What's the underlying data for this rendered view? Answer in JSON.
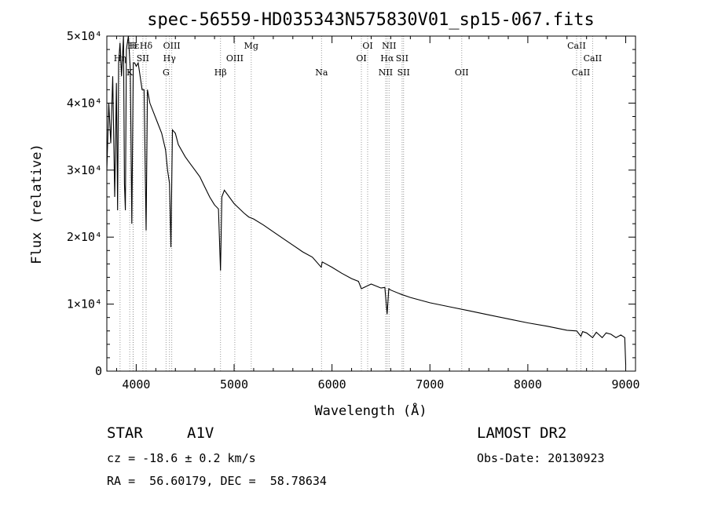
{
  "chart_data": {
    "type": "line",
    "title": "spec-56559-HD035343N575830V01_sp15-067.fits",
    "xlabel": "Wavelength (Å)",
    "ylabel": "Flux (relative)",
    "xlim": [
      3700,
      9100
    ],
    "ylim": [
      0,
      50000
    ],
    "xticks": [
      4000,
      5000,
      6000,
      7000,
      8000,
      9000
    ],
    "xtick_labels": [
      "4000",
      "5000",
      "6000",
      "7000",
      "8000",
      "9000"
    ],
    "yticks": [
      0,
      10000,
      20000,
      30000,
      40000,
      50000
    ],
    "ytick_labels": [
      "0",
      "1×10⁴",
      "2×10⁴",
      "3×10⁴",
      "4×10⁴",
      "5×10⁴"
    ],
    "grid": false,
    "series": [
      {
        "x": [
          3700,
          3720,
          3740,
          3760,
          3780,
          3798,
          3810,
          3820,
          3835,
          3850,
          3870,
          3880,
          3889,
          3900,
          3920,
          3940,
          3955,
          3970,
          3985,
          4000,
          4020,
          4060,
          4080,
          4101,
          4115,
          4140,
          4180,
          4220,
          4260,
          4300,
          4320,
          4340,
          4355,
          4370,
          4400,
          4430,
          4500,
          4550,
          4600,
          4650,
          4700,
          4750,
          4800,
          4840,
          4861,
          4875,
          4900,
          4950,
          5000,
          5050,
          5100,
          5150,
          5200,
          5300,
          5400,
          5500,
          5600,
          5700,
          5800,
          5890,
          5900,
          6000,
          6100,
          6200,
          6270,
          6300,
          6400,
          6500,
          6540,
          6563,
          6580,
          6600,
          6700,
          6800,
          6900,
          7000,
          7200,
          7400,
          7600,
          7800,
          8000,
          8200,
          8400,
          8500,
          8542,
          8560,
          8600,
          8662,
          8700,
          8760,
          8800,
          8850,
          8900,
          8950,
          8990,
          9000
        ],
        "y": [
          30000,
          40000,
          34000,
          44000,
          26000,
          43000,
          24000,
          46000,
          49000,
          44000,
          50000,
          28000,
          24000,
          48000,
          50000,
          45000,
          22000,
          46000,
          46000,
          45500,
          46000,
          42000,
          42000,
          21000,
          42000,
          40000,
          38500,
          37000,
          35500,
          33000,
          30000,
          28000,
          18500,
          36000,
          35500,
          33800,
          32000,
          31000,
          30000,
          29000,
          27500,
          26000,
          24800,
          24200,
          15000,
          26000,
          27000,
          26000,
          25000,
          24300,
          23600,
          23000,
          22700,
          21800,
          20800,
          19800,
          18800,
          17800,
          17000,
          15500,
          16300,
          15500,
          14600,
          13800,
          13400,
          12300,
          13000,
          12400,
          12500,
          8500,
          12300,
          12100,
          11500,
          11000,
          10600,
          10200,
          9600,
          9000,
          8400,
          7800,
          7200,
          6700,
          6100,
          6000,
          5200,
          5900,
          5700,
          5000,
          5800,
          5000,
          5700,
          5500,
          5000,
          5400,
          5000,
          1000
        ]
      }
    ],
    "line_markers": [
      {
        "label": "Hε",
        "x": 3970,
        "row": 0
      },
      {
        "label": "Hη",
        "x": 3835,
        "row": 1
      },
      {
        "label": "K",
        "x": 3934,
        "row": 2
      },
      {
        "label": "H",
        "x": 3968,
        "row": 0
      },
      {
        "label": "Hδ",
        "x": 4101,
        "row": 0
      },
      {
        "label": "SII",
        "x": 4068,
        "row": 1
      },
      {
        "label": "OIII",
        "x": 4363,
        "row": 0
      },
      {
        "label": "Hγ",
        "x": 4340,
        "row": 1
      },
      {
        "label": "G",
        "x": 4305,
        "row": 2
      },
      {
        "label": "Hβ",
        "x": 4861,
        "row": 2
      },
      {
        "label": "OIII",
        "x": 5007,
        "row": 1
      },
      {
        "label": "Mg",
        "x": 5175,
        "row": 0
      },
      {
        "label": "Na",
        "x": 5893,
        "row": 2
      },
      {
        "label": "OI",
        "x": 6300,
        "row": 1
      },
      {
        "label": "OI",
        "x": 6364,
        "row": 0
      },
      {
        "label": "NII",
        "x": 6583,
        "row": 0
      },
      {
        "label": "Hα",
        "x": 6563,
        "row": 1
      },
      {
        "label": "SII",
        "x": 6716,
        "row": 1
      },
      {
        "label": "NII",
        "x": 6548,
        "row": 2
      },
      {
        "label": "SII",
        "x": 6731,
        "row": 2
      },
      {
        "label": "OII",
        "x": 7325,
        "row": 2
      },
      {
        "label": "CaII",
        "x": 8498,
        "row": 0
      },
      {
        "label": "CaII",
        "x": 8542,
        "row": 2
      },
      {
        "label": "CaII",
        "x": 8662,
        "row": 1
      }
    ]
  },
  "info": {
    "object_type": "STAR",
    "subclass": "A1V",
    "survey": "LAMOST DR2",
    "cz": "cz = -18.6 ± 0.2 km/s",
    "obs_date": "Obs-Date: 20130923",
    "coords": "RA =  56.60179, DEC =  58.78634"
  }
}
